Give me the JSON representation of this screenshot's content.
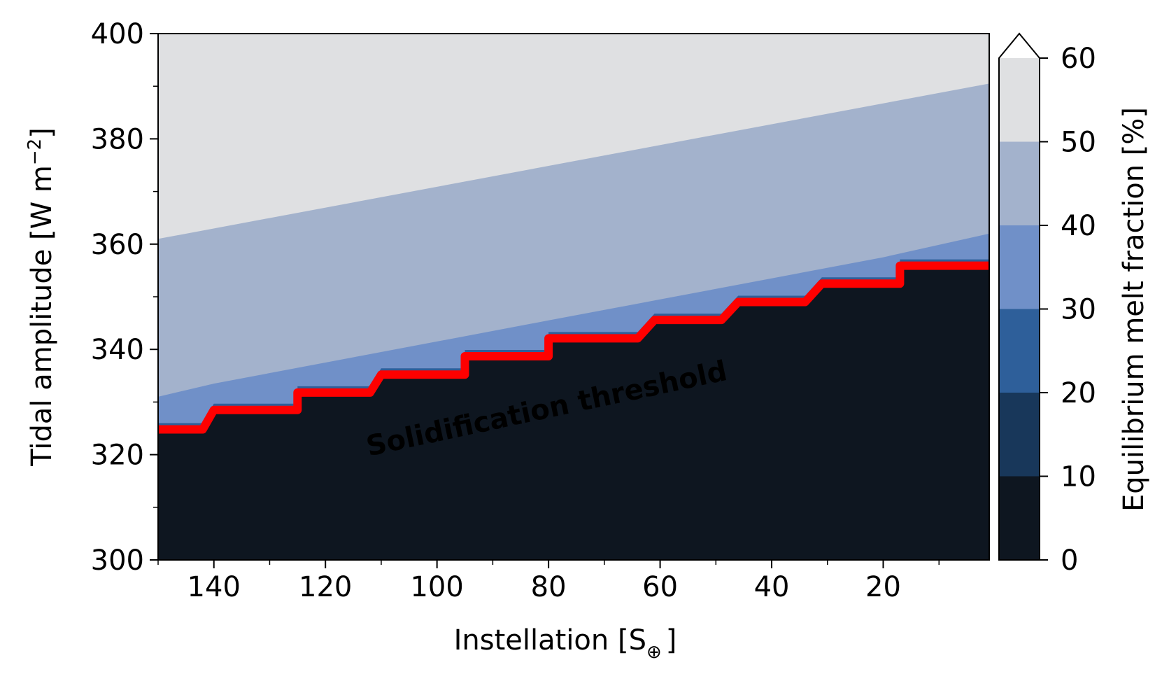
{
  "chart_data": {
    "type": "heatmap",
    "subtype": "filled-contour",
    "xlabel": "Instellation [S",
    "xlabel_subscript": "⊕",
    "xlabel_end": "]",
    "ylabel": "Tidal amplitude [W m",
    "ylabel_superscript": "−2",
    "ylabel_end": "]",
    "xlim": [
      150,
      1
    ],
    "ylim": [
      300,
      400
    ],
    "x_inverted": true,
    "xticks": [
      140,
      120,
      100,
      80,
      60,
      40,
      20
    ],
    "xtick_labels": [
      "140",
      "120",
      "100",
      "80",
      "60",
      "40",
      "20"
    ],
    "yticks": [
      300,
      320,
      340,
      360,
      380,
      400
    ],
    "ytick_labels": [
      "300",
      "320",
      "340",
      "360",
      "380",
      "400"
    ],
    "colorbar": {
      "label": "Equilibrium melt fraction [%]",
      "levels": [
        0,
        10,
        20,
        30,
        40,
        50,
        60
      ],
      "tick_labels": [
        "0",
        "10",
        "20",
        "30",
        "40",
        "50",
        "60"
      ],
      "extend": "max",
      "colors": [
        "#0e1620",
        "#18375a",
        "#2e5f9a",
        "#7090c8",
        "#a3b2cc",
        "#dfe0e2",
        "#ffffff"
      ]
    },
    "boundaries": {
      "melt_50": {
        "x": [
          150,
          1
        ],
        "y": [
          361,
          390.5
        ]
      },
      "melt_40": {
        "x": [
          150,
          140,
          120,
          100,
          80,
          60,
          40,
          20,
          1
        ],
        "y": [
          331,
          333.5,
          337.5,
          341.5,
          345.5,
          349.5,
          353.5,
          357.5,
          362
        ]
      }
    },
    "solidification_threshold": {
      "x": [
        150,
        142,
        140,
        125,
        125,
        112,
        110,
        95,
        95,
        80,
        80,
        64,
        61,
        49,
        46,
        34,
        31,
        17,
        17,
        1
      ],
      "y": [
        324.8,
        324.8,
        328.5,
        328.5,
        331.8,
        331.8,
        335.2,
        335.2,
        338.7,
        338.7,
        342.1,
        342.1,
        345.6,
        345.6,
        349,
        349,
        352.5,
        352.5,
        355.9,
        355.9
      ],
      "color": "#ff0000"
    },
    "annotations": [
      {
        "text": "Solidification threshold",
        "color": "#ff0000",
        "x": 80,
        "y": 327,
        "rotation_deg": -12
      }
    ]
  }
}
